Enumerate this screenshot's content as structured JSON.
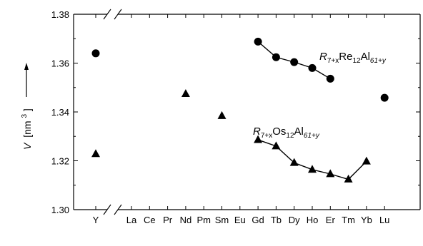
{
  "chart_data": {
    "type": "scatter",
    "title": "",
    "ylabel_symbol": "V",
    "ylabel_unit": "[nm",
    "ylabel_exp": "3",
    "ylabel_close": "]",
    "xlabel": "",
    "ylim": [
      1.3,
      1.38
    ],
    "yticks": [
      1.3,
      1.32,
      1.34,
      1.36,
      1.38
    ],
    "ytick_labels": [
      "1.30",
      "1.32",
      "1.34",
      "1.36",
      "1.38"
    ],
    "categories": [
      "Y",
      "La",
      "Ce",
      "Pr",
      "Nd",
      "Pm",
      "Sm",
      "Eu",
      "Gd",
      "Tb",
      "Dy",
      "Ho",
      "Er",
      "Tm",
      "Yb",
      "Lu"
    ],
    "axis_break_after": "Y",
    "grid": false,
    "series": [
      {
        "name_base": "R",
        "name_sub1": "7+x",
        "name_mid": "Re",
        "name_sub2": "12",
        "name_mid2": "Al",
        "name_sub3": "61+y",
        "marker": "circle",
        "points": [
          {
            "x": "Y",
            "y": 1.364
          },
          {
            "x": "Gd",
            "y": 1.3688
          },
          {
            "x": "Tb",
            "y": 1.3624
          },
          {
            "x": "Dy",
            "y": 1.3604
          },
          {
            "x": "Ho",
            "y": 1.358
          },
          {
            "x": "Er",
            "y": 1.3536
          },
          {
            "x": "Lu",
            "y": 1.3458
          }
        ],
        "connected": [
          "Gd",
          "Tb",
          "Dy",
          "Ho",
          "Er"
        ]
      },
      {
        "name_base": "R",
        "name_sub1": "7+x",
        "name_mid": "Os",
        "name_sub2": "12",
        "name_mid2": "Al",
        "name_sub3": "61+y",
        "marker": "triangle",
        "points": [
          {
            "x": "Y",
            "y": 1.3228
          },
          {
            "x": "Nd",
            "y": 1.3474
          },
          {
            "x": "Sm",
            "y": 1.3384
          },
          {
            "x": "Gd",
            "y": 1.3286
          },
          {
            "x": "Tb",
            "y": 1.326
          },
          {
            "x": "Dy",
            "y": 1.3192
          },
          {
            "x": "Ho",
            "y": 1.3164
          },
          {
            "x": "Er",
            "y": 1.3146
          },
          {
            "x": "Tm",
            "y": 1.3124
          },
          {
            "x": "Yb",
            "y": 1.3198
          }
        ],
        "connected": [
          "Gd",
          "Tb",
          "Dy",
          "Ho",
          "Er",
          "Tm",
          "Yb"
        ]
      }
    ]
  }
}
